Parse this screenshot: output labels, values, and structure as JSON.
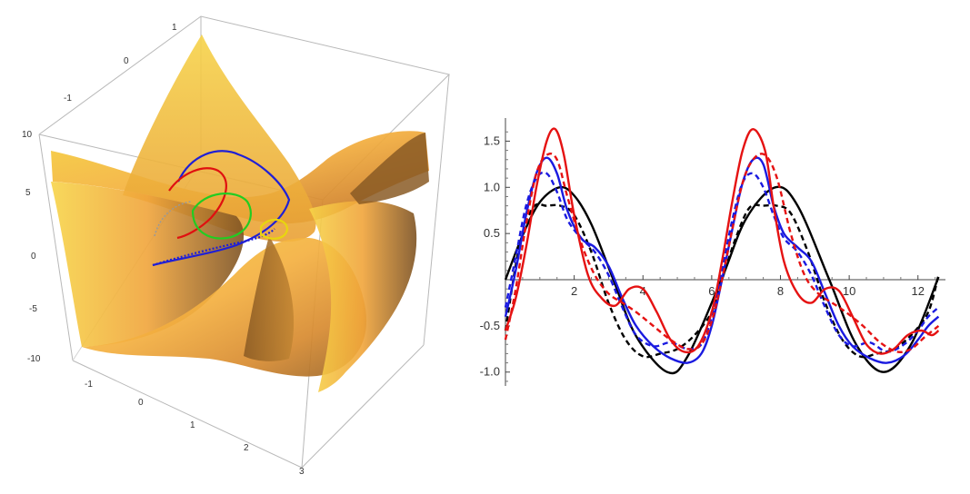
{
  "chart_data": [
    {
      "type": "surface3d",
      "title": "",
      "x_ticks": [
        "-1",
        "0",
        "1",
        "2",
        "3"
      ],
      "y_ticks": [
        "-1",
        "0",
        "1"
      ],
      "z_ticks": [
        "10",
        "5",
        "0",
        "-5",
        "-10"
      ],
      "surface_colors": [
        "#f7d34a",
        "#f2a73b",
        "#c8852e",
        "#8a5a22"
      ],
      "curves": [
        {
          "color": "#1f1fd6"
        },
        {
          "color": "#e01010"
        },
        {
          "color": "#22cc22"
        },
        {
          "color": "#e8d60f"
        }
      ]
    },
    {
      "type": "line",
      "title": "",
      "xlim": [
        0,
        12.8
      ],
      "ylim": [
        -1.15,
        1.75
      ],
      "x_ticks": [
        2,
        4,
        6,
        8,
        10,
        12
      ],
      "y_ticks": [
        -1.0,
        -0.5,
        0.5,
        1.0,
        1.5
      ],
      "x_tick_labels": [
        "2",
        "4",
        "6",
        "8",
        "10",
        "12"
      ],
      "y_tick_labels": [
        "-1.0",
        "-0.5",
        "0.5",
        "1.0",
        "1.5"
      ],
      "series": [
        {
          "color": "#000000",
          "dashed": false,
          "x": [
            0,
            0.5,
            1.0,
            1.57,
            2.0,
            2.5,
            3.14,
            3.8,
            4.71,
            5.3,
            6.28,
            7.0,
            7.85,
            8.5,
            9.42,
            10.2,
            11.0,
            11.8,
            12.6
          ],
          "y": [
            0,
            0.48,
            0.84,
            1.0,
            0.91,
            0.6,
            0,
            -0.61,
            -1.0,
            -0.83,
            0,
            0.66,
            1.0,
            0.8,
            0,
            -0.7,
            -1.0,
            -0.7,
            0.03
          ]
        },
        {
          "color": "#000000",
          "dashed": true,
          "x": [
            0,
            0.4,
            0.8,
            1.2,
            1.6,
            2.0,
            2.5,
            3.0,
            3.5,
            4.0,
            4.5,
            5.0,
            5.5,
            6.0,
            6.3,
            6.7,
            7.1,
            7.5,
            7.9,
            8.3,
            8.8,
            9.3,
            9.8,
            10.3,
            10.8,
            11.3,
            11.8,
            12.3,
            12.6
          ],
          "y": [
            -0.55,
            0.35,
            0.78,
            0.8,
            0.8,
            0.7,
            0.3,
            -0.25,
            -0.65,
            -0.83,
            -0.8,
            -0.75,
            -0.6,
            -0.35,
            0.0,
            0.45,
            0.78,
            0.8,
            0.8,
            0.72,
            0.3,
            -0.25,
            -0.65,
            -0.83,
            -0.8,
            -0.75,
            -0.6,
            -0.35,
            0.05
          ]
        },
        {
          "color": "#1a1ae0",
          "dashed": false,
          "x": [
            0,
            0.3,
            0.6,
            0.9,
            1.2,
            1.5,
            1.8,
            2.2,
            2.6,
            3.0,
            3.4,
            3.8,
            4.3,
            4.8,
            5.3,
            5.7,
            6.0,
            6.3,
            6.6,
            6.9,
            7.2,
            7.5,
            7.8,
            8.1,
            8.5,
            8.9,
            9.3,
            9.7,
            10.1,
            10.6,
            11.1,
            11.6,
            12.0,
            12.3,
            12.6
          ],
          "y": [
            -0.4,
            0.1,
            0.7,
            1.15,
            1.32,
            1.15,
            0.75,
            0.45,
            0.35,
            0.15,
            -0.2,
            -0.5,
            -0.72,
            -0.85,
            -0.9,
            -0.8,
            -0.5,
            0.0,
            0.55,
            1.05,
            1.3,
            1.25,
            0.8,
            0.5,
            0.35,
            0.2,
            -0.15,
            -0.5,
            -0.72,
            -0.85,
            -0.9,
            -0.82,
            -0.65,
            -0.5,
            -0.4
          ]
        },
        {
          "color": "#1a1ae0",
          "dashed": true,
          "x": [
            0,
            0.3,
            0.6,
            0.9,
            1.2,
            1.5,
            1.8,
            2.2,
            2.6,
            3.0,
            3.4,
            3.8,
            4.3,
            4.8,
            5.3,
            5.7,
            6.0,
            6.3,
            6.6,
            6.9,
            7.2,
            7.5,
            7.8,
            8.1,
            8.5,
            8.9,
            9.3,
            9.7,
            10.1,
            10.6,
            11.1,
            11.6,
            12.0,
            12.3,
            12.6
          ],
          "y": [
            -0.3,
            0.25,
            0.8,
            1.1,
            1.15,
            0.95,
            0.65,
            0.45,
            0.3,
            0.05,
            -0.3,
            -0.6,
            -0.72,
            -0.68,
            -0.75,
            -0.7,
            -0.4,
            0.1,
            0.65,
            1.05,
            1.15,
            1.0,
            0.7,
            0.45,
            0.3,
            0.05,
            -0.3,
            -0.6,
            -0.72,
            -0.68,
            -0.78,
            -0.7,
            -0.55,
            -0.4,
            -0.3
          ]
        },
        {
          "color": "#e51212",
          "dashed": false,
          "x": [
            0,
            0.3,
            0.6,
            0.9,
            1.2,
            1.45,
            1.7,
            2.0,
            2.4,
            2.8,
            3.2,
            3.6,
            4.0,
            4.4,
            4.8,
            5.2,
            5.6,
            6.0,
            6.3,
            6.6,
            6.9,
            7.2,
            7.55,
            7.8,
            8.1,
            8.5,
            8.9,
            9.3,
            9.7,
            10.1,
            10.5,
            10.9,
            11.3,
            11.7,
            12.1,
            12.4,
            12.6
          ],
          "y": [
            -0.55,
            -0.2,
            0.35,
            1.0,
            1.5,
            1.63,
            1.35,
            0.7,
            0.05,
            -0.2,
            -0.28,
            -0.1,
            -0.1,
            -0.35,
            -0.65,
            -0.78,
            -0.72,
            -0.35,
            0.2,
            0.85,
            1.4,
            1.63,
            1.4,
            0.8,
            0.2,
            -0.15,
            -0.25,
            -0.1,
            -0.12,
            -0.4,
            -0.7,
            -0.8,
            -0.75,
            -0.6,
            -0.55,
            -0.6,
            -0.55
          ]
        },
        {
          "color": "#e51212",
          "dashed": true,
          "x": [
            0,
            0.3,
            0.6,
            0.9,
            1.2,
            1.5,
            1.8,
            2.2,
            2.6,
            3.0,
            3.4,
            3.8,
            4.3,
            4.8,
            5.3,
            5.7,
            6.0,
            6.3,
            6.6,
            6.9,
            7.2,
            7.55,
            7.9,
            8.3,
            8.7,
            9.1,
            9.5,
            9.9,
            10.4,
            10.9,
            11.4,
            11.8,
            12.2,
            12.6
          ],
          "y": [
            -0.65,
            -0.1,
            0.6,
            1.15,
            1.35,
            1.3,
            0.9,
            0.4,
            0.05,
            -0.15,
            -0.25,
            -0.35,
            -0.5,
            -0.65,
            -0.75,
            -0.7,
            -0.45,
            0.0,
            0.55,
            1.05,
            1.3,
            1.35,
            1.1,
            0.5,
            0.05,
            -0.15,
            -0.25,
            -0.35,
            -0.5,
            -0.68,
            -0.78,
            -0.75,
            -0.62,
            -0.5
          ]
        }
      ]
    }
  ]
}
